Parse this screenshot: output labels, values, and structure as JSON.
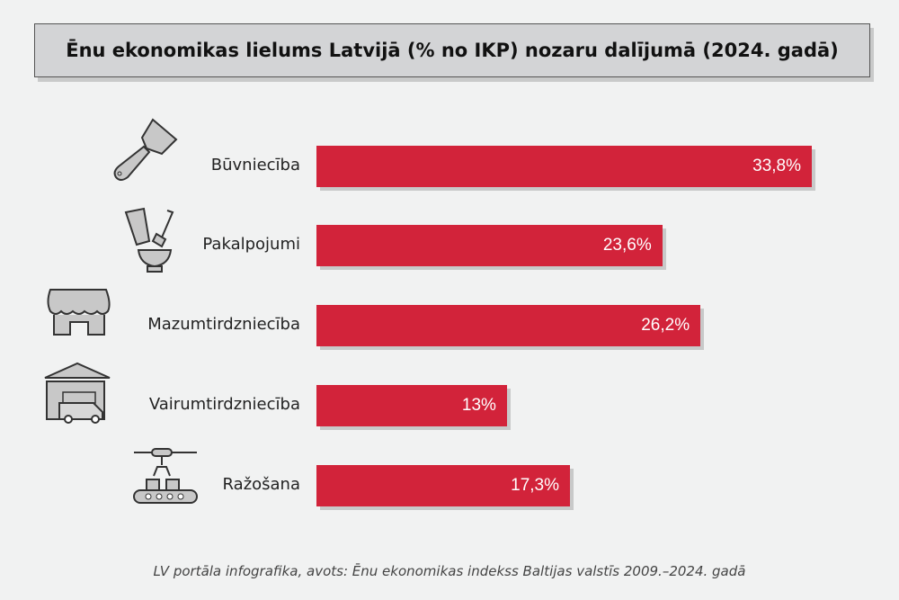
{
  "chart_data": {
    "type": "bar",
    "orientation": "horizontal",
    "title": "Ēnu ekonomikas lielums Latvijā (% no IKP) nozaru dalījumā (2024. gadā)",
    "categories": [
      "Būvniecība",
      "Pakalpojumi",
      "Mazumtirdzniecība",
      "Vairumtirdzniecība",
      "Ražošana"
    ],
    "values": [
      33.8,
      23.6,
      26.2,
      13,
      17.3
    ],
    "value_labels": [
      "33,8%",
      "23,6%",
      "26,2%",
      "13%",
      "17,3%"
    ],
    "icons": [
      "putty-knife-icon",
      "cosmetics-icon",
      "shop-icon",
      "warehouse-truck-icon",
      "factory-conveyor-icon"
    ],
    "xlim": [
      0,
      35
    ],
    "bar_color": "#d2233a",
    "grid": false,
    "legend": "none"
  },
  "footer": "LV portāla infografika, avots: Ēnu ekonomikas indekss Baltijas valstīs 2009.–2024. gadā"
}
